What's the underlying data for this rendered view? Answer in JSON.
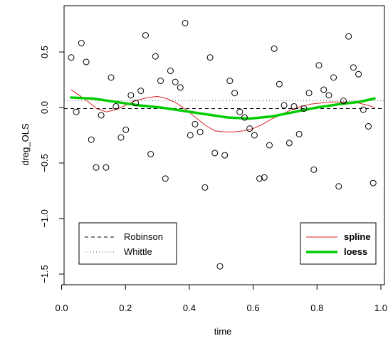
{
  "chart_data": {
    "type": "scatter",
    "title": "",
    "xlabel": "time",
    "ylabel": "dreg_OLS",
    "xlim": [
      0.0,
      1.0
    ],
    "ylim": [
      -1.5,
      0.75
    ],
    "xticks": [
      0.0,
      0.2,
      0.4,
      0.6,
      0.8,
      1.0
    ],
    "xtick_labels": [
      "0.0",
      "0.2",
      "0.4",
      "0.6",
      "0.8",
      "1.0"
    ],
    "yticks": [
      -1.5,
      -1.0,
      -0.5,
      0.0,
      0.5
    ],
    "ytick_labels": [
      "−1.5",
      "−1.0",
      "−0.5",
      "0.0",
      "0.5"
    ],
    "grid": false,
    "points": {
      "x": [
        0.03,
        0.046,
        0.062,
        0.077,
        0.093,
        0.108,
        0.124,
        0.139,
        0.155,
        0.17,
        0.186,
        0.201,
        0.217,
        0.232,
        0.248,
        0.263,
        0.279,
        0.294,
        0.31,
        0.325,
        0.341,
        0.356,
        0.372,
        0.387,
        0.403,
        0.418,
        0.434,
        0.449,
        0.465,
        0.48,
        0.496,
        0.511,
        0.527,
        0.542,
        0.558,
        0.573,
        0.589,
        0.604,
        0.62,
        0.635,
        0.651,
        0.666,
        0.682,
        0.697,
        0.713,
        0.728,
        0.744,
        0.759,
        0.775,
        0.79,
        0.806,
        0.821,
        0.837,
        0.852,
        0.868,
        0.883,
        0.899,
        0.914,
        0.93,
        0.945,
        0.961,
        0.976
      ],
      "y": [
        0.45,
        -0.04,
        0.58,
        0.41,
        -0.29,
        -0.54,
        -0.07,
        -0.54,
        0.27,
        0.01,
        -0.27,
        -0.2,
        0.11,
        0.04,
        0.15,
        0.65,
        -0.42,
        0.46,
        0.24,
        -0.64,
        0.33,
        0.23,
        0.18,
        0.76,
        -0.25,
        -0.15,
        -0.22,
        -0.72,
        0.45,
        -0.41,
        -1.43,
        -0.43,
        0.24,
        0.13,
        -0.04,
        -0.09,
        -0.19,
        -0.25,
        -0.64,
        -0.63,
        -0.34,
        0.53,
        0.21,
        0.02,
        -0.32,
        0.01,
        -0.24,
        -0.01,
        0.13,
        -0.56,
        0.38,
        0.16,
        0.11,
        0.27,
        -0.71,
        0.06,
        0.64,
        0.36,
        0.3,
        -0.02,
        -0.17,
        -0.68
      ]
    },
    "reference_lines": [
      {
        "name": "Robinson",
        "y": -0.01,
        "dash": "dashed",
        "color": "#000000"
      },
      {
        "name": "Whittle",
        "y": 0.06,
        "dash": "dotted",
        "color": "#555555"
      }
    ],
    "series": [
      {
        "name": "spline",
        "color": "#dd2222",
        "x": [
          0.03,
          0.05,
          0.08,
          0.11,
          0.14,
          0.17,
          0.2,
          0.23,
          0.27,
          0.3,
          0.33,
          0.36,
          0.39,
          0.42,
          0.45,
          0.48,
          0.51,
          0.54,
          0.57,
          0.6,
          0.63,
          0.66,
          0.69,
          0.72,
          0.75,
          0.78,
          0.81,
          0.84,
          0.87,
          0.9,
          0.93,
          0.96,
          0.98
        ],
        "y": [
          0.16,
          0.12,
          0.06,
          -0.01,
          -0.04,
          -0.02,
          0.02,
          0.06,
          0.09,
          0.1,
          0.08,
          0.04,
          -0.02,
          -0.09,
          -0.16,
          -0.21,
          -0.22,
          -0.22,
          -0.21,
          -0.19,
          -0.15,
          -0.1,
          -0.06,
          -0.02,
          0.01,
          0.03,
          0.04,
          0.05,
          0.05,
          0.05,
          0.04,
          0.02,
          0.0
        ]
      },
      {
        "name": "loess",
        "color": "#00cc00",
        "x": [
          0.03,
          0.1,
          0.17,
          0.24,
          0.31,
          0.38,
          0.45,
          0.52,
          0.59,
          0.66,
          0.73,
          0.8,
          0.87,
          0.93,
          0.98
        ],
        "y": [
          0.09,
          0.08,
          0.05,
          0.02,
          0.0,
          -0.03,
          -0.06,
          -0.09,
          -0.1,
          -0.08,
          -0.04,
          0.0,
          0.03,
          0.05,
          0.08
        ]
      }
    ],
    "legends": [
      {
        "position": "bottom-left",
        "entries": [
          {
            "label": "Robinson",
            "style": "dashed",
            "color": "#000000"
          },
          {
            "label": "Whittle",
            "style": "dotted",
            "color": "#555555"
          }
        ]
      },
      {
        "position": "bottom-right",
        "entries": [
          {
            "label": "spline",
            "style": "thin",
            "color": "#dd2222"
          },
          {
            "label": "loess",
            "style": "thick",
            "color": "#00cc00"
          }
        ]
      }
    ]
  }
}
